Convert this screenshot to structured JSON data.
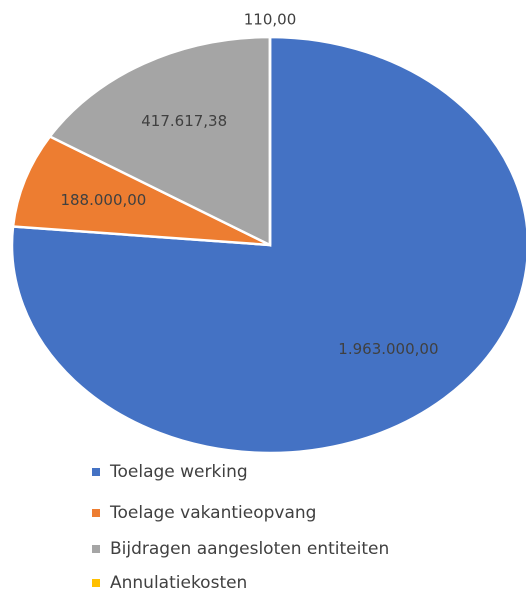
{
  "chart_data": {
    "type": "pie",
    "categories": [
      "Toelage werking",
      "Toelage vakantieopvang",
      "Bijdragen aangesloten entiteiten",
      "Annulatiekosten"
    ],
    "values": [
      1963000,
      188000,
      417617.38,
      110
    ],
    "value_labels": [
      "1.963.000,00",
      "188.000,00",
      "417.617,38",
      "110,00"
    ],
    "colors": [
      "#4472c4",
      "#ed7d31",
      "#a5a5a5",
      "#ffc000"
    ],
    "legend": "bottom"
  }
}
